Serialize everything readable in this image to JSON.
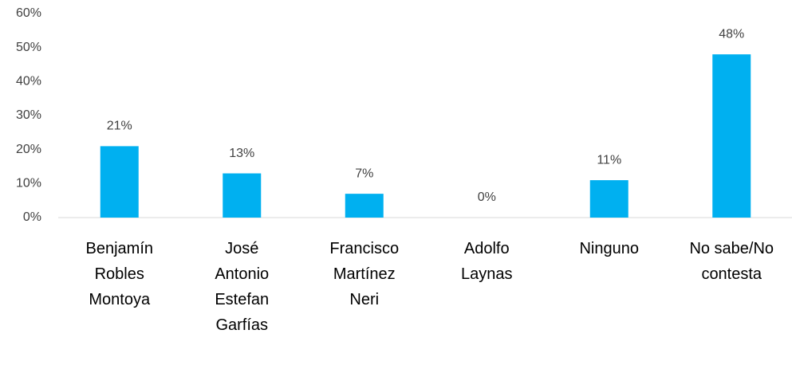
{
  "chart_data": {
    "type": "bar",
    "categories": [
      "Benjamín Robles Montoya",
      "José Antonio Estefan Garfías",
      "Francisco Martínez Neri",
      "Adolfo Laynas",
      "Ninguno",
      "No sabe/No contesta"
    ],
    "values": [
      21,
      13,
      7,
      0,
      11,
      48
    ],
    "value_labels": [
      "21%",
      "13%",
      "7%",
      "0%",
      "11%",
      "48%"
    ],
    "color": "#00b0f0",
    "ylim": [
      0,
      60
    ],
    "yticks": [
      {
        "value": 0,
        "label": "0%"
      },
      {
        "value": 10,
        "label": "10%"
      },
      {
        "value": 20,
        "label": "20%"
      },
      {
        "value": 30,
        "label": "30%"
      },
      {
        "value": 40,
        "label": "40%"
      },
      {
        "value": 50,
        "label": "50%"
      },
      {
        "value": 60,
        "label": "60%"
      }
    ],
    "grid": false
  }
}
